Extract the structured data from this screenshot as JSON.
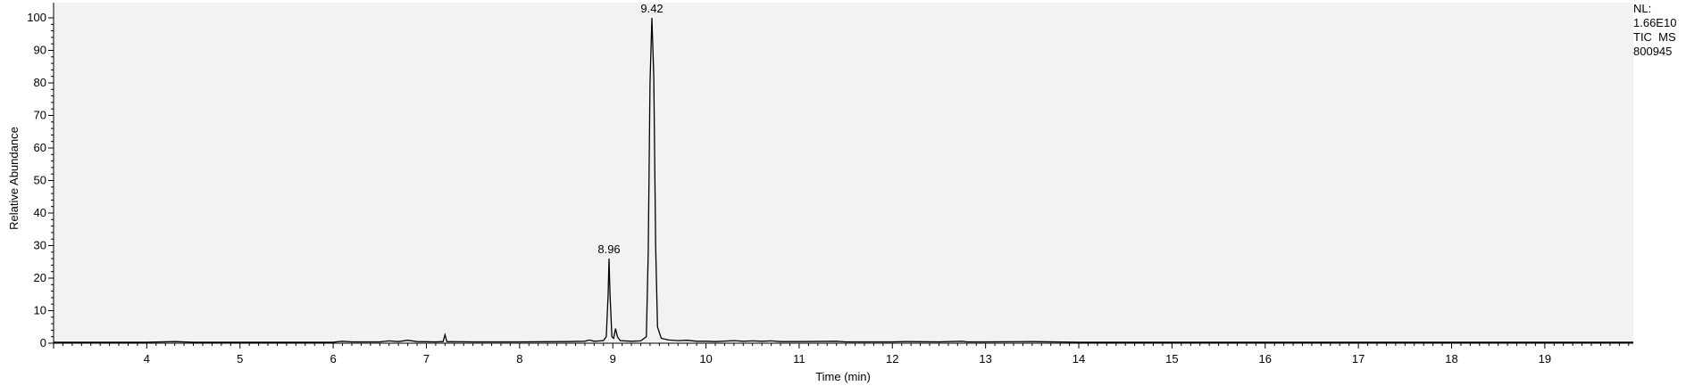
{
  "chart_data": {
    "type": "line",
    "ylabel": "Relative Abundance",
    "xlabel": "Time (min)",
    "xlim": [
      3.0,
      19.95
    ],
    "ylim": [
      0,
      101
    ],
    "x_ticks": [
      4,
      5,
      6,
      7,
      8,
      9,
      10,
      11,
      12,
      13,
      14,
      15,
      16,
      17,
      18,
      19
    ],
    "y_ticks": [
      0,
      10,
      20,
      30,
      40,
      50,
      60,
      70,
      80,
      90,
      100
    ],
    "grid": false,
    "background": "#f2f2f2",
    "line_color": "#000000",
    "series": [
      {
        "points": [
          [
            3.0,
            0.3
          ],
          [
            3.5,
            0.3
          ],
          [
            4.0,
            0.3
          ],
          [
            4.3,
            0.5
          ],
          [
            4.5,
            0.3
          ],
          [
            5.0,
            0.3
          ],
          [
            5.5,
            0.3
          ],
          [
            6.0,
            0.3
          ],
          [
            6.1,
            0.6
          ],
          [
            6.2,
            0.4
          ],
          [
            6.5,
            0.4
          ],
          [
            6.6,
            0.7
          ],
          [
            6.7,
            0.5
          ],
          [
            6.8,
            0.9
          ],
          [
            6.9,
            0.5
          ],
          [
            7.1,
            0.4
          ],
          [
            7.18,
            0.5
          ],
          [
            7.2,
            2.6
          ],
          [
            7.22,
            0.5
          ],
          [
            7.5,
            0.4
          ],
          [
            8.0,
            0.4
          ],
          [
            8.5,
            0.5
          ],
          [
            8.7,
            0.6
          ],
          [
            8.75,
            1.0
          ],
          [
            8.8,
            0.6
          ],
          [
            8.9,
            0.8
          ],
          [
            8.93,
            2.0
          ],
          [
            8.95,
            15.0
          ],
          [
            8.96,
            26.0
          ],
          [
            8.97,
            15.0
          ],
          [
            8.99,
            2.0
          ],
          [
            9.01,
            1.5
          ],
          [
            9.03,
            4.5
          ],
          [
            9.05,
            2.0
          ],
          [
            9.08,
            0.8
          ],
          [
            9.2,
            0.6
          ],
          [
            9.3,
            0.7
          ],
          [
            9.36,
            2.0
          ],
          [
            9.38,
            28.0
          ],
          [
            9.4,
            80.0
          ],
          [
            9.42,
            100.0
          ],
          [
            9.44,
            82.0
          ],
          [
            9.46,
            30.0
          ],
          [
            9.48,
            5.0
          ],
          [
            9.52,
            1.5
          ],
          [
            9.6,
            1.0
          ],
          [
            9.7,
            0.8
          ],
          [
            9.8,
            0.9
          ],
          [
            9.9,
            0.6
          ],
          [
            10.0,
            0.6
          ],
          [
            10.1,
            0.5
          ],
          [
            10.3,
            0.8
          ],
          [
            10.4,
            0.6
          ],
          [
            10.5,
            0.7
          ],
          [
            10.6,
            0.6
          ],
          [
            10.7,
            0.7
          ],
          [
            10.8,
            0.5
          ],
          [
            11.0,
            0.5
          ],
          [
            11.4,
            0.6
          ],
          [
            11.5,
            0.4
          ],
          [
            12.0,
            0.4
          ],
          [
            12.15,
            0.5
          ],
          [
            12.5,
            0.4
          ],
          [
            12.75,
            0.6
          ],
          [
            12.8,
            0.4
          ],
          [
            13.0,
            0.4
          ],
          [
            13.5,
            0.5
          ],
          [
            14.0,
            0.3
          ],
          [
            15.0,
            0.3
          ],
          [
            16.0,
            0.3
          ],
          [
            17.0,
            0.3
          ],
          [
            18.0,
            0.3
          ],
          [
            19.0,
            0.3
          ],
          [
            19.95,
            0.3
          ]
        ]
      }
    ],
    "annotations": [
      {
        "text": "9.42",
        "x": 9.42,
        "y": 100
      },
      {
        "text": "8.96",
        "x": 8.96,
        "y": 26
      }
    ],
    "side_info": {
      "nl_label": "NL:",
      "nl_value": "1.66E10",
      "trace": "TIC  MS",
      "sample": "800945"
    }
  }
}
